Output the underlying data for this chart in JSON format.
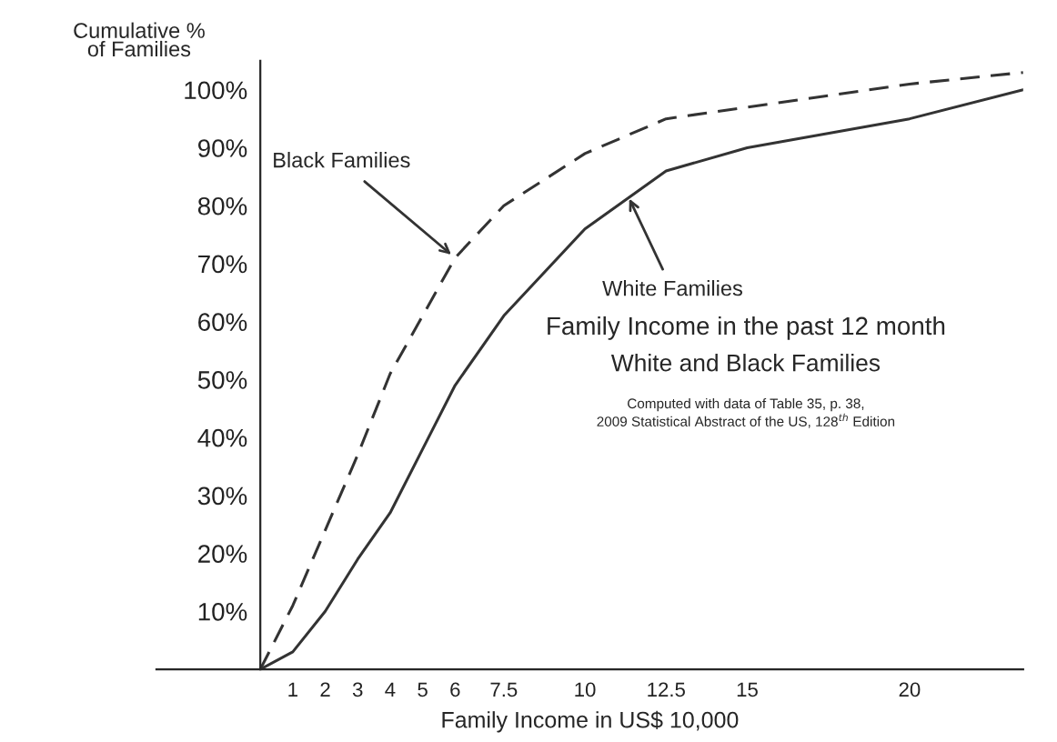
{
  "chart_data": {
    "type": "line",
    "title": "Family Income in the past 12 month",
    "subtitle": "White and Black Families",
    "xlabel": "Family Income in US$ 10,000",
    "ylabel": "Cumulative %\nof Families",
    "x": [
      0,
      1,
      2,
      3,
      4,
      5,
      6,
      7.5,
      10,
      12.5,
      15,
      20,
      23.5
    ],
    "series": [
      {
        "color": "#333333",
        "line_style": "dashed",
        "values": [
          0,
          11,
          24,
          37,
          51,
          61,
          71,
          80,
          89,
          95,
          97,
          101,
          103
        ]
      },
      {
        "color": "#333333",
        "line_style": "solid",
        "values": [
          0,
          3,
          10,
          19,
          27,
          38,
          49,
          61,
          76,
          86,
          90,
          95,
          100
        ]
      }
    ],
    "annotations": [
      {
        "text": "Black Families",
        "x": 6,
        "y": 71
      },
      {
        "text": "White Families",
        "x": 11.3,
        "y": 82
      },
      "Computed with data of Table 35, p. 38,\n2009 Statistical Abstract of the US, 128$^{th}$ Edition"
    ],
    "xlim": [
      -3.2,
      23.5
    ],
    "ylim": [
      0,
      105
    ],
    "xticks": [
      1,
      2,
      3,
      4,
      5,
      6,
      7.5,
      10,
      12.5,
      15,
      20
    ],
    "yticks": [
      {
        "value": 10,
        "label": "10%"
      },
      {
        "value": 20,
        "label": "20%"
      },
      {
        "value": 30,
        "label": "30%"
      },
      {
        "value": 40,
        "label": "40%"
      },
      {
        "value": 50,
        "label": "50%"
      },
      {
        "value": 60,
        "label": "60%"
      },
      {
        "value": 70,
        "label": "70%"
      },
      {
        "value": 80,
        "label": "80%"
      },
      {
        "value": 90,
        "label": "90%"
      },
      {
        "value": 100,
        "label": "100%"
      }
    ],
    "grid": false,
    "legend": false,
    "marker": "none"
  }
}
